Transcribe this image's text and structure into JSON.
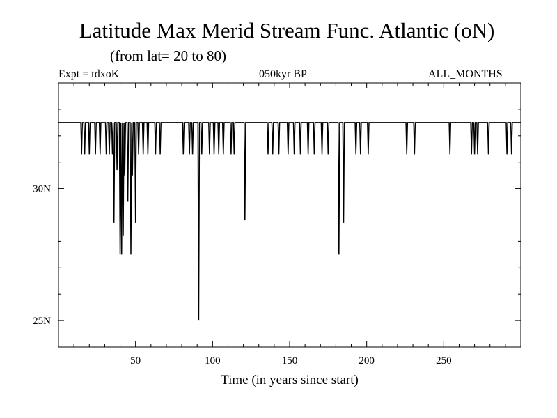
{
  "header": {
    "title": "Latitude Max Merid Stream Func. Atlantic (oN)",
    "subtitle": "(from lat= 20 to 80)",
    "expt": "Expt = tdxoK",
    "period": "050kyr BP",
    "months": "ALL_MONTHS"
  },
  "chart_data": {
    "type": "line",
    "title": "Latitude Max Merid Stream Func. Atlantic (oN)",
    "subtitle": "(from lat= 20 to 80)",
    "xlabel": "Time (in years since start)",
    "ylabel": "",
    "xlim": [
      0,
      300
    ],
    "ylim": [
      24,
      34
    ],
    "x_ticks": [
      50,
      100,
      150,
      200,
      250
    ],
    "x_tick_labels": [
      "50",
      "100",
      "150",
      "200",
      "250"
    ],
    "y_ticks": [
      25,
      30
    ],
    "y_tick_labels": [
      "25N",
      "30N"
    ],
    "grid": false,
    "baseline": 32.5,
    "series": [
      {
        "dips": [
          [
            15,
            31.3
          ],
          [
            17,
            31.3
          ],
          [
            20,
            31.3
          ],
          [
            24,
            31.3
          ],
          [
            27,
            31.3
          ],
          [
            31,
            31.3
          ],
          [
            33,
            31.3
          ],
          [
            35,
            31.3
          ],
          [
            36,
            28.7
          ],
          [
            38,
            30.7
          ],
          [
            40,
            27.5
          ],
          [
            41,
            27.5
          ],
          [
            42,
            28.2
          ],
          [
            43,
            30.5
          ],
          [
            45,
            29.5
          ],
          [
            47,
            27.5
          ],
          [
            48,
            30.5
          ],
          [
            50,
            28.7
          ],
          [
            52,
            31.3
          ],
          [
            55,
            31.3
          ],
          [
            58,
            31.3
          ],
          [
            63,
            31.3
          ],
          [
            66,
            31.3
          ],
          [
            81,
            31.3
          ],
          [
            85,
            31.3
          ],
          [
            87,
            31.3
          ],
          [
            91,
            25.0
          ],
          [
            93,
            31.3
          ],
          [
            98,
            31.3
          ],
          [
            101,
            31.3
          ],
          [
            104,
            31.3
          ],
          [
            107,
            31.3
          ],
          [
            112,
            31.3
          ],
          [
            114,
            31.3
          ],
          [
            121,
            28.8
          ],
          [
            136,
            31.3
          ],
          [
            139,
            31.3
          ],
          [
            143,
            31.3
          ],
          [
            149,
            31.3
          ],
          [
            153,
            31.3
          ],
          [
            157,
            31.3
          ],
          [
            162,
            31.3
          ],
          [
            166,
            31.3
          ],
          [
            171,
            31.3
          ],
          [
            175,
            31.3
          ],
          [
            182,
            27.5
          ],
          [
            185,
            28.7
          ],
          [
            193,
            31.3
          ],
          [
            196,
            31.3
          ],
          [
            201,
            31.3
          ],
          [
            226,
            31.3
          ],
          [
            231,
            31.3
          ],
          [
            254,
            31.3
          ],
          [
            268,
            31.3
          ],
          [
            270,
            31.3
          ],
          [
            272,
            31.3
          ],
          [
            279,
            31.3
          ],
          [
            291,
            31.3
          ],
          [
            294,
            31.3
          ]
        ]
      }
    ]
  }
}
